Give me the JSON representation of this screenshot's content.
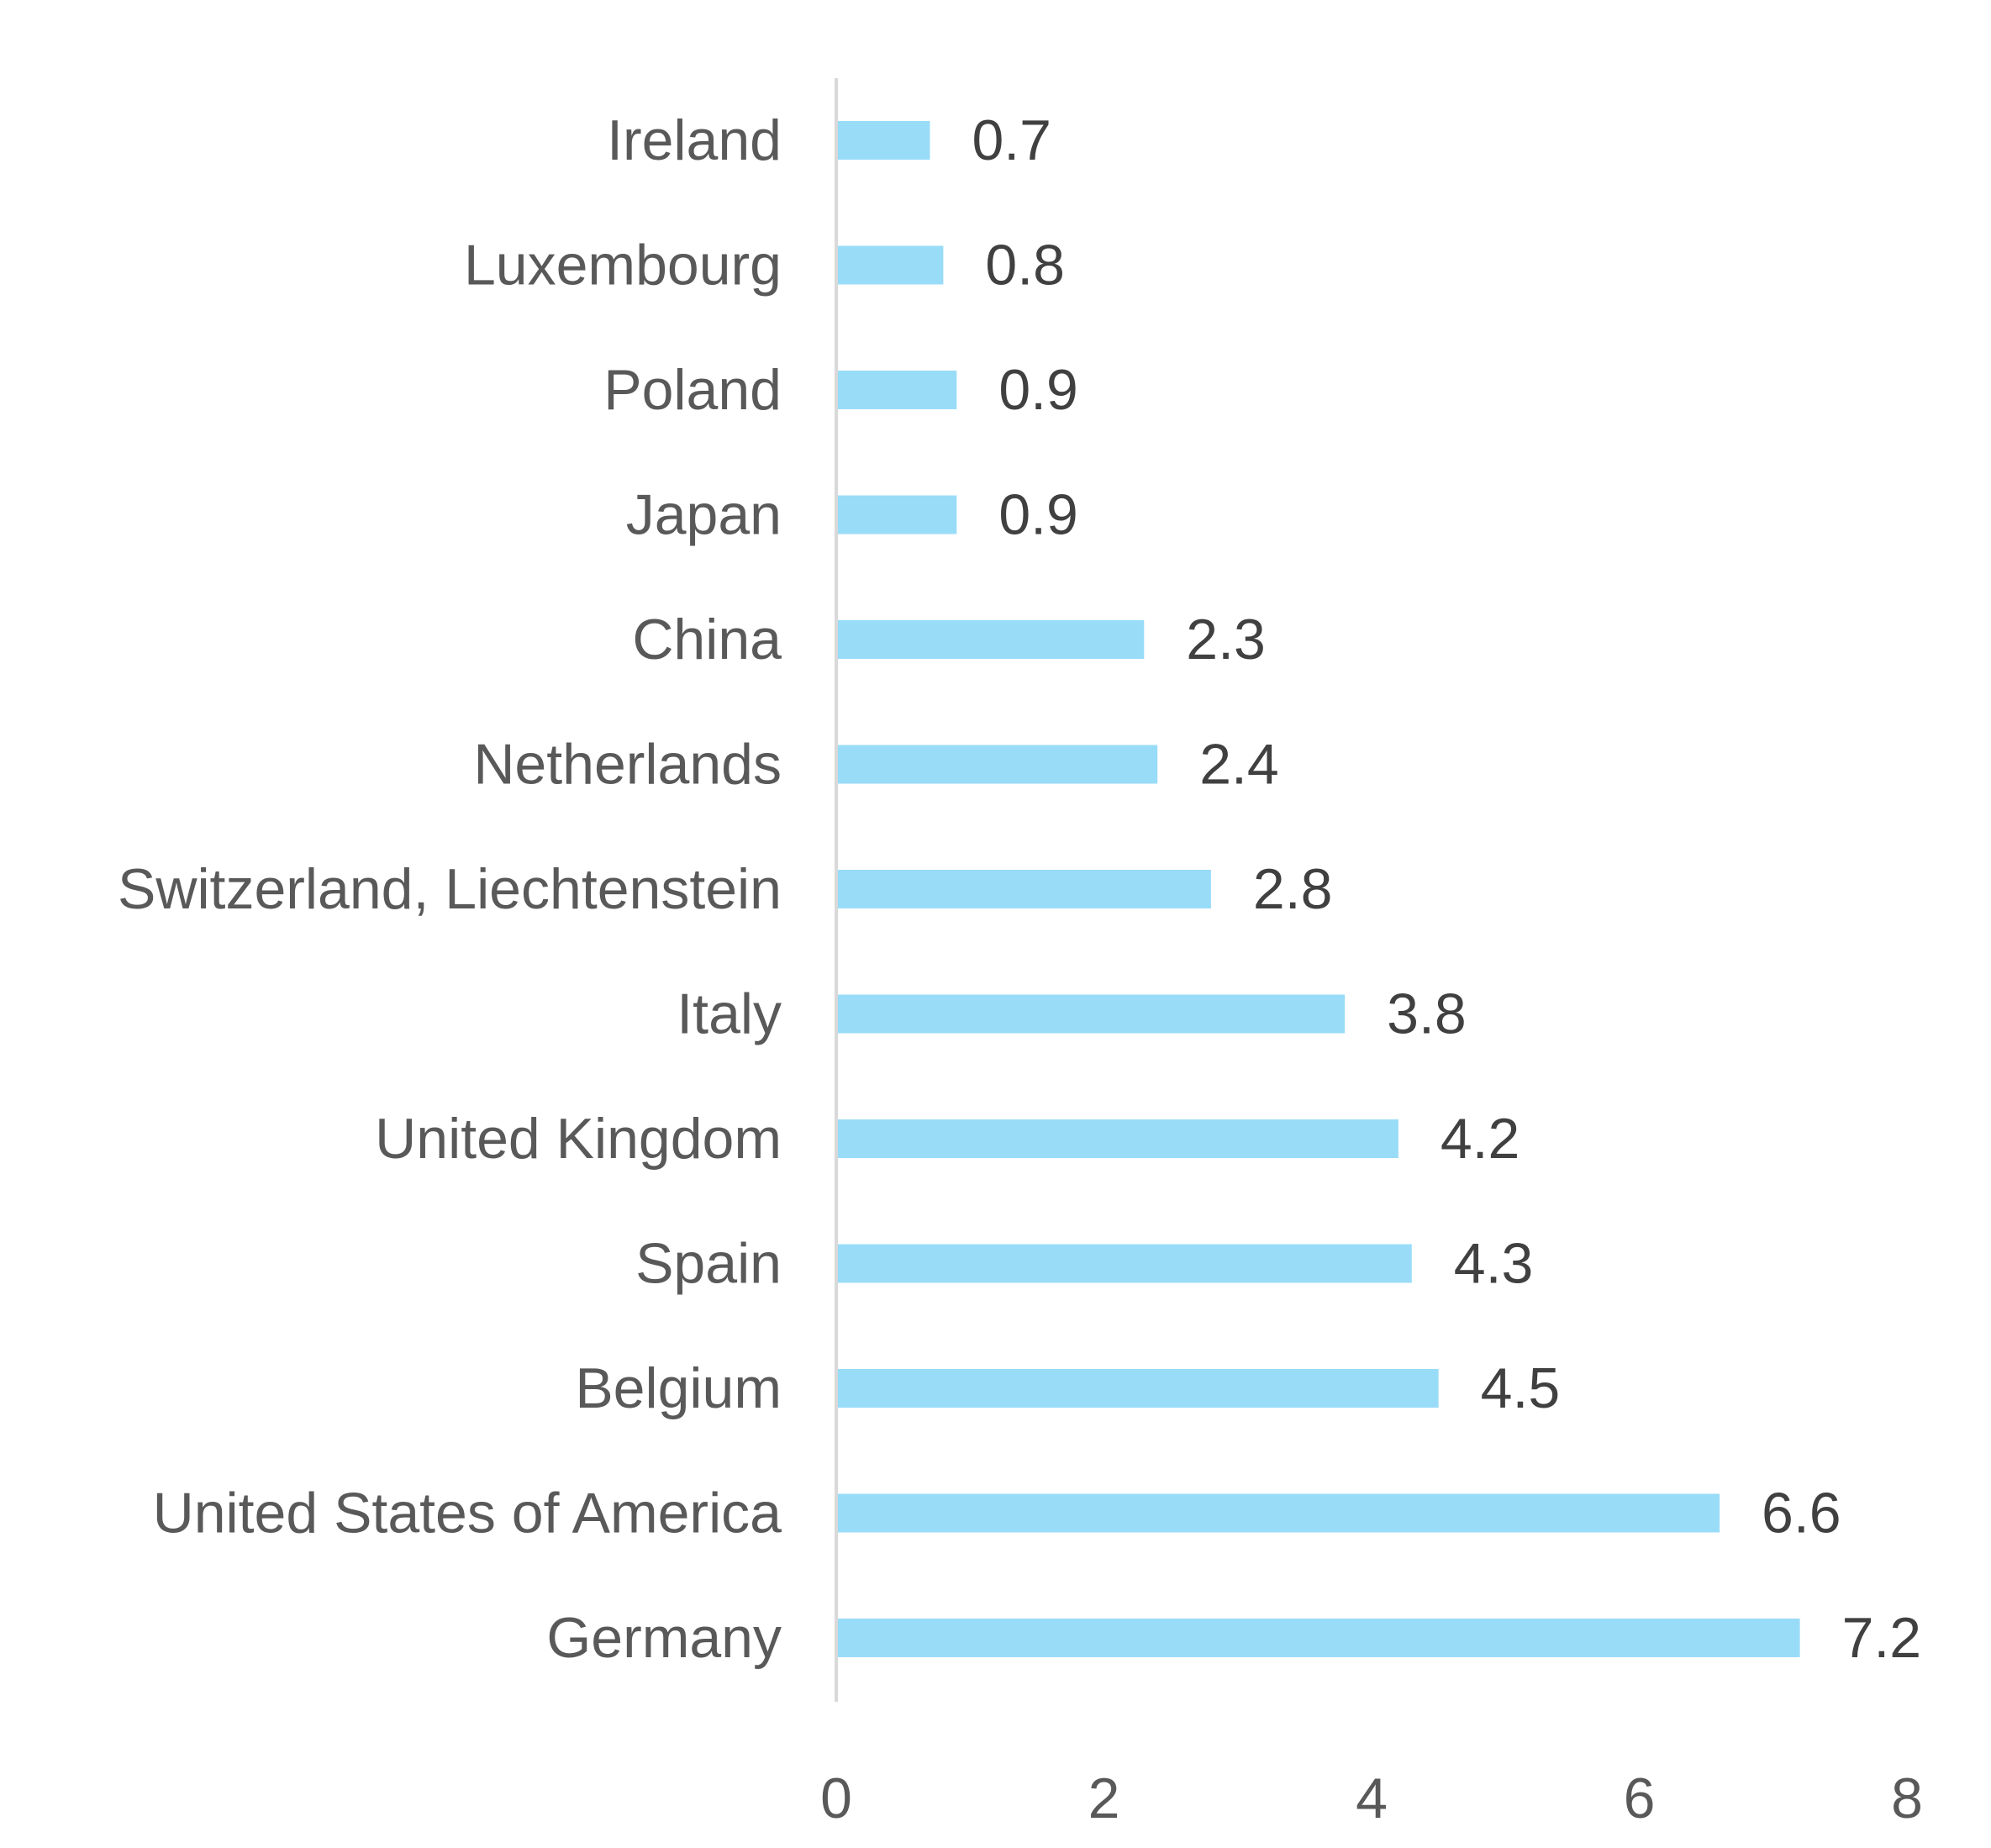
{
  "chart_data": {
    "type": "bar",
    "orientation": "horizontal",
    "title": "",
    "xlabel": "",
    "ylabel": "",
    "categories": [
      "Ireland",
      "Luxembourg",
      "Poland",
      "Japan",
      "China",
      "Netherlands",
      "Switzerland, Liechtenstein",
      "Italy",
      "United Kingdom",
      "Spain",
      "Belgium",
      "United States of America",
      "Germany"
    ],
    "values": [
      0.7,
      0.8,
      0.9,
      0.9,
      2.3,
      2.4,
      2.8,
      3.8,
      4.2,
      4.3,
      4.5,
      6.6,
      7.2
    ],
    "value_labels": [
      "0.7",
      "0.8",
      "0.9",
      "0.9",
      "2.3",
      "2.4",
      "2.8",
      "3.8",
      "4.2",
      "4.3",
      "4.5",
      "6.6",
      "7.2"
    ],
    "xlim": [
      0,
      8
    ],
    "x_ticks": [
      "0",
      "2",
      "4",
      "6",
      "8"
    ],
    "grid": false,
    "legend": "none",
    "colors": {
      "bar": "#99dcf8",
      "axis": "#d9d9d9",
      "category_text": "#595959",
      "value_text": "#404040",
      "tick_text": "#595959"
    }
  }
}
